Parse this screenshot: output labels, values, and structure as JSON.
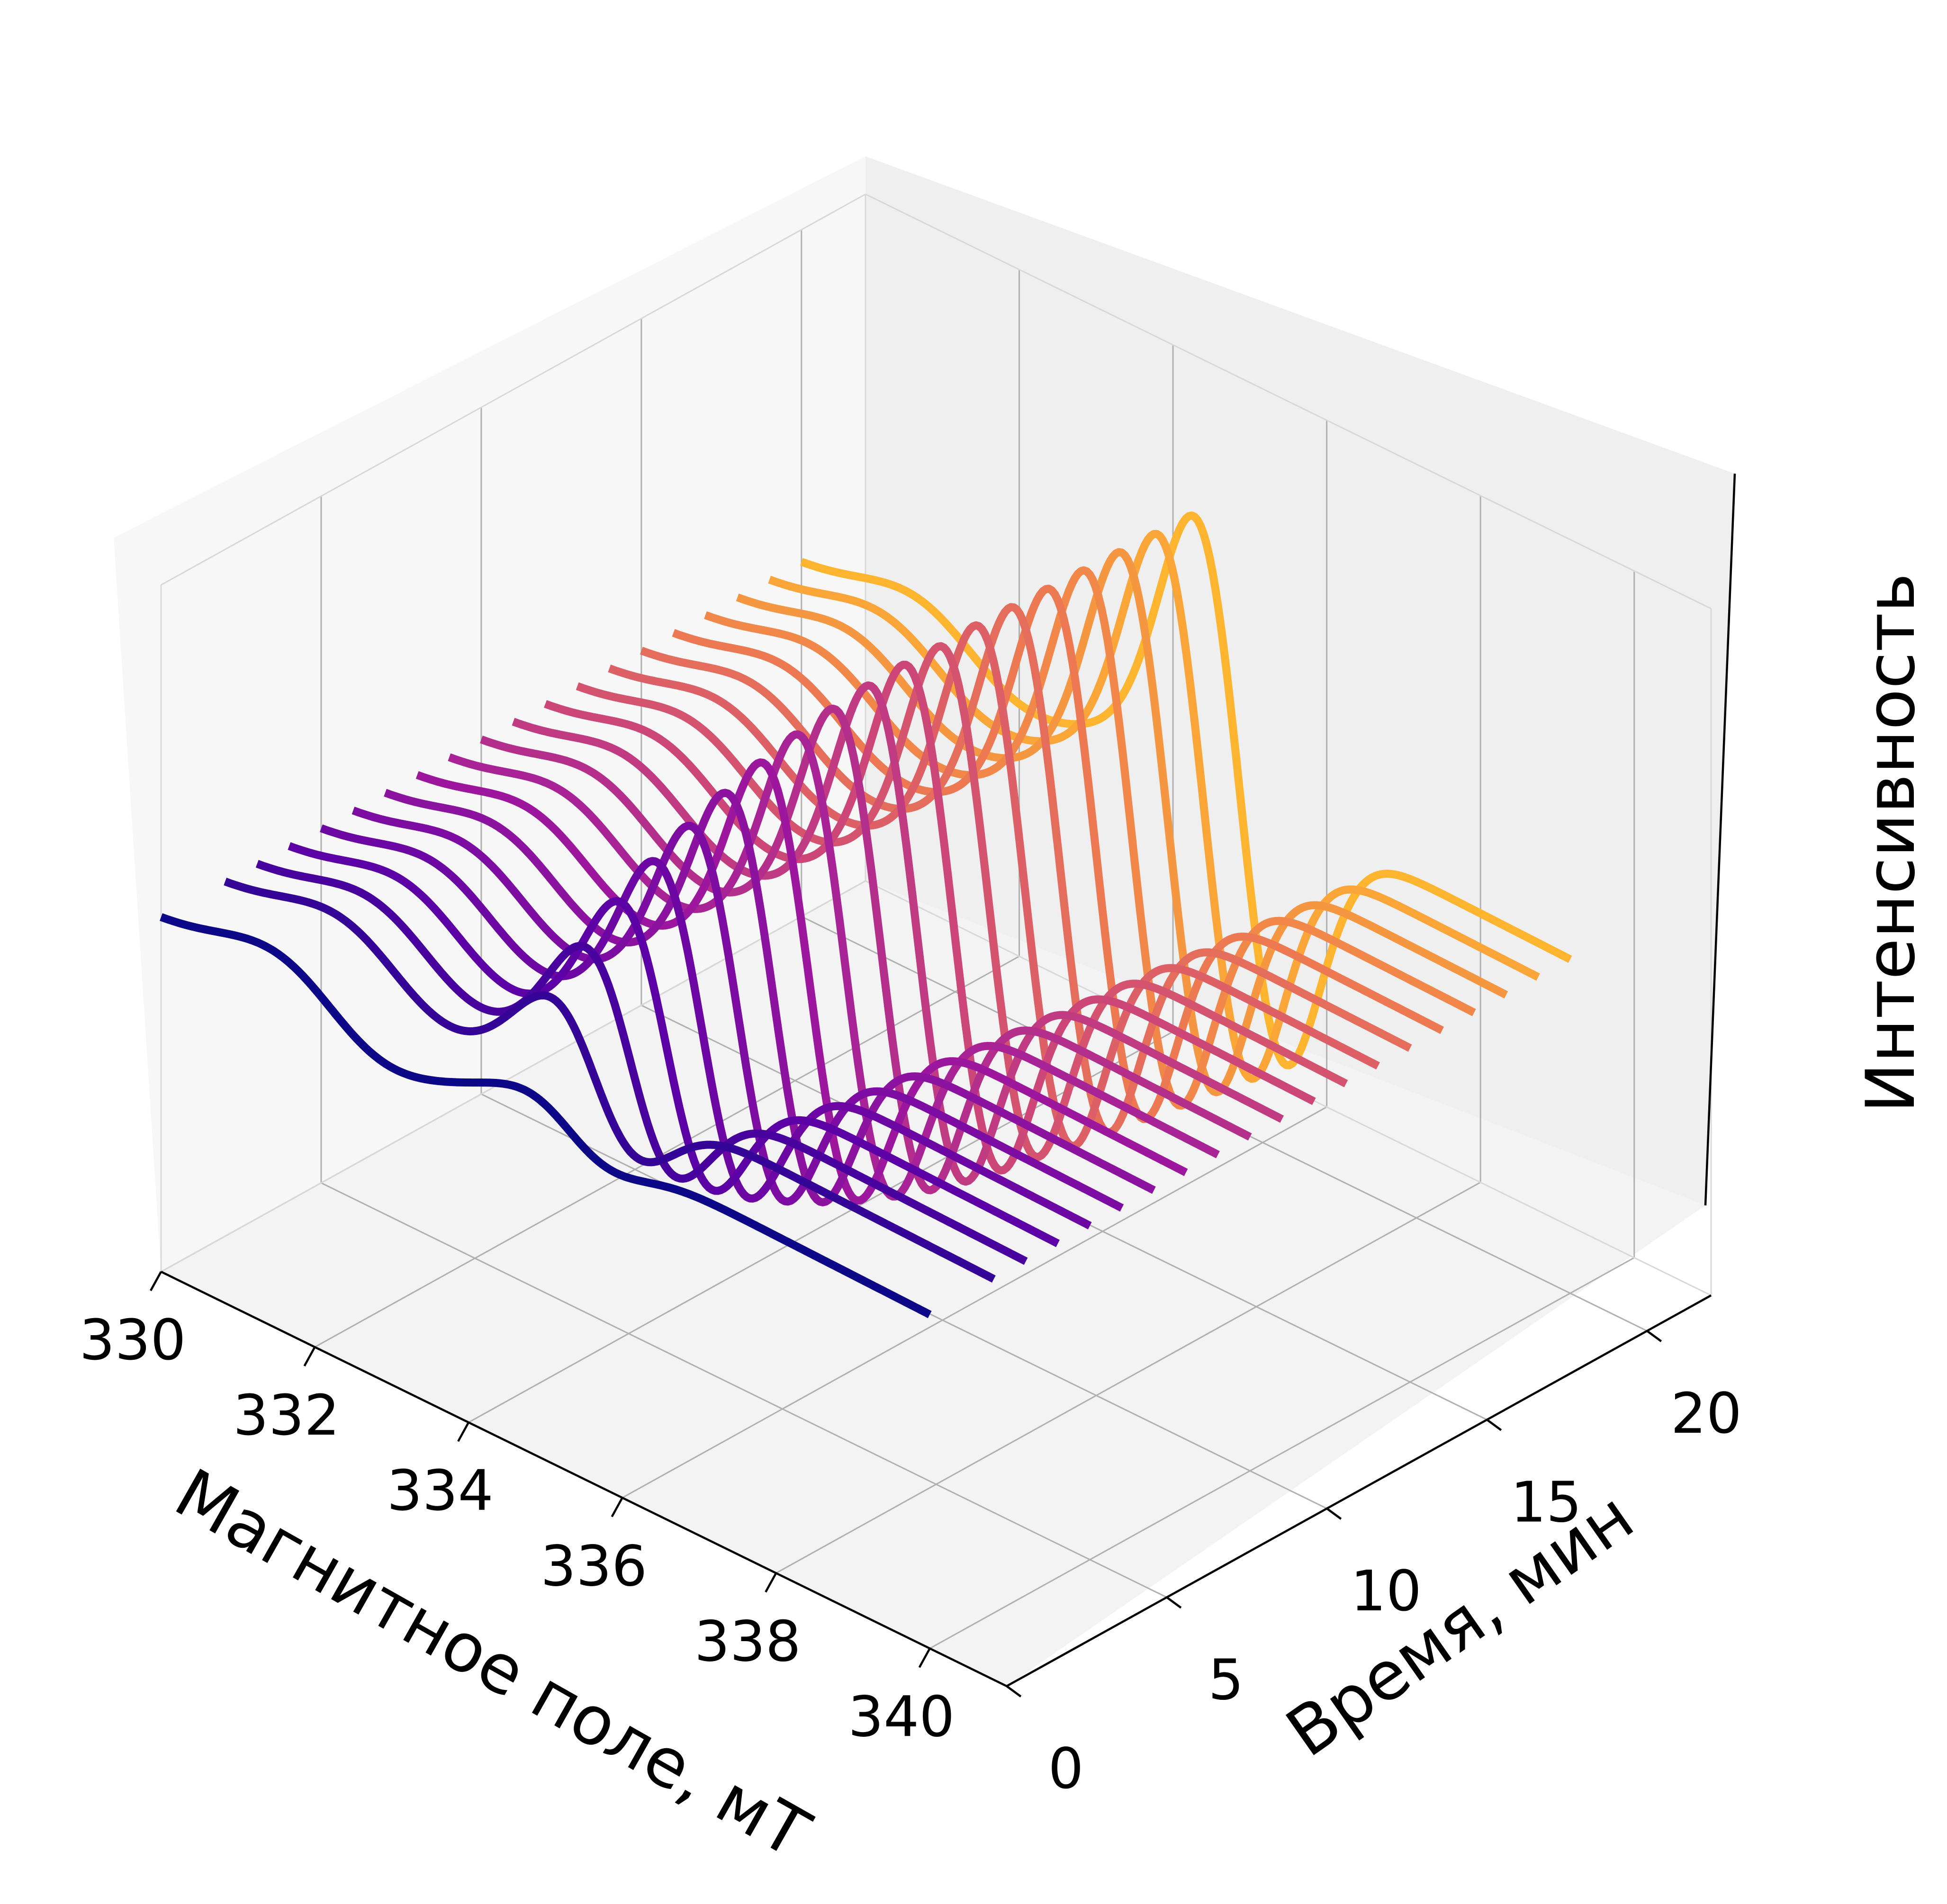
{
  "chart_data": {
    "type": "line",
    "title": "",
    "xlabel": "Магнитное поле, мТ",
    "ylabel": "Время, мин",
    "zlabel": "Интенсивность",
    "x_range": [
      330,
      341
    ],
    "y_range": [
      0,
      22
    ],
    "z_range": [
      -1.3,
      1.6
    ],
    "x_ticks": [
      "330",
      "332",
      "334",
      "336",
      "338",
      "340"
    ],
    "y_ticks": [
      "0",
      "5",
      "10",
      "15",
      "20"
    ],
    "grid": true,
    "legend": "none",
    "colormap": [
      "#0d0887",
      "#5c01a6",
      "#9c179e",
      "#cc4778",
      "#ed7953",
      "#fdb42f"
    ],
    "spectrum_model": {
      "field_start": 330,
      "field_end": 340,
      "component_center": 335.3,
      "component_width": 0.85,
      "broad_center": 332.2,
      "broad_width": 1.2,
      "broad_amplitude": 0.12,
      "baseline_offset": 0.18,
      "baseline_slope": 0.035
    },
    "series": [
      {
        "time": 0,
        "shift": 0.0,
        "amplitude": 0.08
      },
      {
        "time": 2,
        "shift": -0.5,
        "amplitude": 0.26
      },
      {
        "time": 3,
        "shift": -0.45,
        "amplitude": 0.4
      },
      {
        "time": 4,
        "shift": -0.4,
        "amplitude": 0.52
      },
      {
        "time": 5,
        "shift": -0.35,
        "amplitude": 0.62
      },
      {
        "time": 6,
        "shift": -0.3,
        "amplitude": 0.7
      },
      {
        "time": 7,
        "shift": -0.25,
        "amplitude": 0.77
      },
      {
        "time": 8,
        "shift": -0.2,
        "amplitude": 0.83
      },
      {
        "time": 9,
        "shift": -0.15,
        "amplitude": 0.88
      },
      {
        "time": 10,
        "shift": -0.1,
        "amplitude": 0.92
      },
      {
        "time": 11,
        "shift": -0.05,
        "amplitude": 0.95
      },
      {
        "time": 12,
        "shift": 0.0,
        "amplitude": 0.97
      },
      {
        "time": 13,
        "shift": 0.05,
        "amplitude": 0.98
      },
      {
        "time": 14,
        "shift": 0.1,
        "amplitude": 1.0
      },
      {
        "time": 15,
        "shift": 0.15,
        "amplitude": 1.01
      },
      {
        "time": 16,
        "shift": 0.2,
        "amplitude": 1.02
      },
      {
        "time": 17,
        "shift": 0.25,
        "amplitude": 1.03
      },
      {
        "time": 18,
        "shift": 0.3,
        "amplitude": 1.04
      },
      {
        "time": 19,
        "shift": 0.35,
        "amplitude": 1.05
      },
      {
        "time": 20,
        "shift": 0.4,
        "amplitude": 1.06
      }
    ]
  }
}
